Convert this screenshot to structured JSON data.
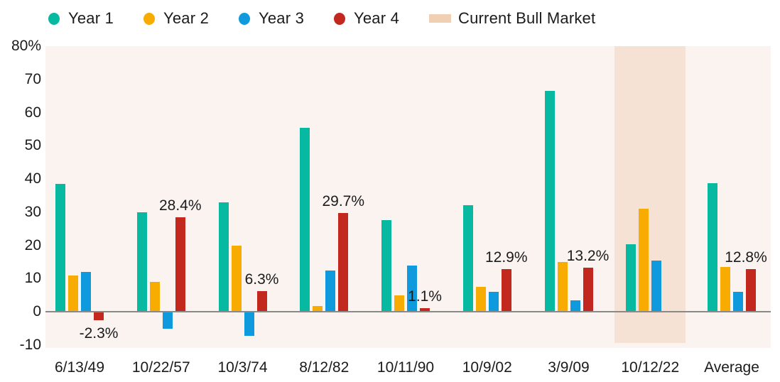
{
  "legend": {
    "items": [
      {
        "label": "Year 1",
        "color": "#06b9a0",
        "shape": "dot"
      },
      {
        "label": "Year 2",
        "color": "#f8ab00",
        "shape": "dot"
      },
      {
        "label": "Year 3",
        "color": "#109ade",
        "shape": "dot"
      },
      {
        "label": "Year 4",
        "color": "#c2281e",
        "shape": "dot"
      },
      {
        "label": "Current Bull Market",
        "color": "#f1cfb2",
        "shape": "swatch"
      }
    ]
  },
  "chart_data": {
    "type": "bar",
    "title": "",
    "categories": [
      "6/13/49",
      "10/22/57",
      "10/3/74",
      "8/12/82",
      "10/11/90",
      "10/9/02",
      "3/9/09",
      "10/12/22",
      "Average"
    ],
    "series": [
      {
        "name": "Year 1",
        "color": "#06b9a0",
        "values": [
          38.5,
          30,
          33,
          55.5,
          27.5,
          32,
          66.5,
          20.3,
          38.7
        ]
      },
      {
        "name": "Year 2",
        "color": "#f8ab00",
        "values": [
          11,
          9,
          20,
          1.7,
          5,
          7.5,
          15,
          31,
          13.5
        ]
      },
      {
        "name": "Year 3",
        "color": "#109ade",
        "values": [
          12,
          -5,
          -7,
          12.5,
          14,
          6,
          3.5,
          15.4,
          6
        ]
      },
      {
        "name": "Year 4",
        "color": "#c2281e",
        "values": [
          -2.3,
          28.4,
          6.3,
          29.7,
          1.1,
          12.9,
          13.2,
          null,
          12.8
        ]
      }
    ],
    "bar_labels": [
      "-2.3%",
      "28.4%",
      "6.3%",
      "29.7%",
      "1.1%",
      "12.9%",
      "13.2%",
      null,
      "12.8%"
    ],
    "ylim": [
      -10,
      80
    ],
    "yticks": [
      {
        "value": 80,
        "label": "80%"
      },
      {
        "value": 70,
        "label": "70"
      },
      {
        "value": 60,
        "label": "60"
      },
      {
        "value": 50,
        "label": "50"
      },
      {
        "value": 40,
        "label": "40"
      },
      {
        "value": 30,
        "label": "30"
      },
      {
        "value": 20,
        "label": "20"
      },
      {
        "value": 10,
        "label": "10"
      },
      {
        "value": 0,
        "label": "0"
      },
      {
        "value": -10,
        "label": "-10"
      }
    ],
    "highlight": {
      "category": "10/12/22",
      "index": 7,
      "label": "Current Bull Market",
      "color": "#f6e2d5"
    },
    "plot_background": "#faf3f0",
    "axis_line_color": "#8a8a8a",
    "text_color": "#1b1b1b",
    "grid": false,
    "legend_position": "top-left"
  }
}
